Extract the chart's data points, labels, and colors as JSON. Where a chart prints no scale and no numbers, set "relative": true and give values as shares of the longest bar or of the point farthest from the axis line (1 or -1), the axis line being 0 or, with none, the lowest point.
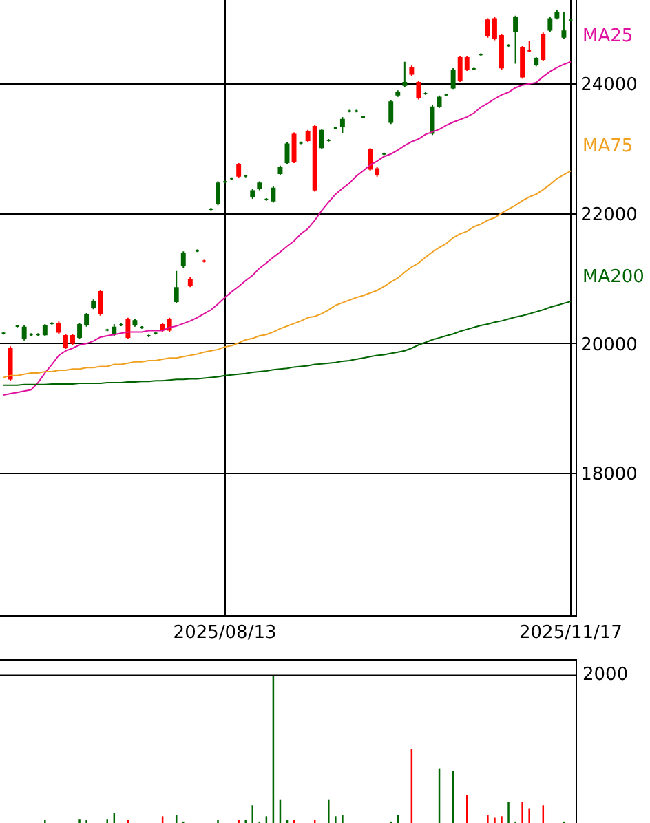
{
  "chart_data": [
    {
      "type": "candlestick",
      "grid": true,
      "categories": [
        null,
        null,
        null,
        null,
        null,
        null,
        null,
        null,
        null,
        null,
        null,
        null,
        null,
        null,
        null,
        null,
        null,
        null,
        null,
        null,
        null,
        null,
        null,
        null,
        null,
        null,
        null,
        null,
        null,
        null,
        null,
        null,
        "2025/08/13",
        null,
        null,
        null,
        null,
        null,
        null,
        null,
        null,
        null,
        null,
        null,
        null,
        null,
        null,
        null,
        null,
        null,
        null,
        null,
        null,
        null,
        null,
        null,
        null,
        null,
        null,
        null,
        null,
        null,
        null,
        null,
        null,
        null,
        null,
        null,
        null,
        null,
        null,
        null,
        null,
        null,
        null,
        null,
        null,
        null,
        null,
        null,
        null,
        null,
        "2025/11/17"
      ],
      "ohlc": [
        [
          20160,
          20180,
          20140,
          20160
        ],
        [
          19460,
          19960,
          19430,
          19930
        ],
        [
          20270,
          20290,
          20250,
          20270
        ],
        [
          20250,
          20280,
          20050,
          20080
        ],
        [
          20140,
          20160,
          20120,
          20140
        ],
        [
          20140,
          20160,
          20120,
          20140
        ],
        [
          20270,
          20300,
          20110,
          20140
        ],
        [
          20310,
          20330,
          20290,
          20310
        ],
        [
          20180,
          20340,
          20150,
          20310
        ],
        [
          19950,
          20150,
          19920,
          20120
        ],
        [
          20010,
          20150,
          19980,
          20120
        ],
        [
          20290,
          20320,
          20070,
          20100
        ],
        [
          20440,
          20470,
          20260,
          20290
        ],
        [
          20650,
          20680,
          20530,
          20560
        ],
        [
          20460,
          20830,
          20430,
          20800
        ],
        [
          20210,
          20230,
          20190,
          20210
        ],
        [
          20250,
          20300,
          20120,
          20160
        ],
        [
          20290,
          20310,
          20270,
          20290
        ],
        [
          20100,
          20400,
          20070,
          20370
        ],
        [
          20350,
          20380,
          20260,
          20290
        ],
        [
          20250,
          20270,
          20230,
          20250
        ],
        [
          20120,
          20140,
          20100,
          20120
        ],
        [
          20160,
          20180,
          20140,
          20160
        ],
        [
          20210,
          20320,
          20180,
          20290
        ],
        [
          20210,
          20400,
          20180,
          20370
        ],
        [
          20860,
          21120,
          20620,
          20650
        ],
        [
          21390,
          21420,
          21170,
          21200
        ],
        [
          20900,
          21020,
          20870,
          20990
        ],
        [
          21430,
          21450,
          21410,
          21430
        ],
        [
          21270,
          21290,
          21250,
          21270
        ],
        [
          22070,
          22090,
          22050,
          22070
        ],
        [
          22470,
          22500,
          22130,
          22160
        ],
        [
          22490,
          22510,
          22470,
          22490
        ],
        [
          22540,
          22560,
          22520,
          22540
        ],
        [
          22580,
          22780,
          22550,
          22750
        ],
        [
          22580,
          22600,
          22560,
          22580
        ],
        [
          22350,
          22380,
          22230,
          22260
        ],
        [
          22470,
          22500,
          22360,
          22390
        ],
        [
          22220,
          22240,
          22200,
          22220
        ],
        [
          22390,
          22420,
          22170,
          22200
        ],
        [
          22710,
          22740,
          22590,
          22620
        ],
        [
          23070,
          23100,
          22760,
          22790
        ],
        [
          22810,
          23250,
          22780,
          23220
        ],
        [
          23090,
          23110,
          23070,
          23090
        ],
        [
          23130,
          23290,
          23100,
          23260
        ],
        [
          22370,
          23370,
          22340,
          23340
        ],
        [
          23280,
          23310,
          22990,
          23020
        ],
        [
          23130,
          23150,
          23110,
          23130
        ],
        [
          23320,
          23340,
          23300,
          23320
        ],
        [
          23450,
          23490,
          23240,
          23340
        ],
        [
          23580,
          23600,
          23560,
          23580
        ],
        [
          23580,
          23600,
          23560,
          23580
        ],
        [
          23490,
          23510,
          23470,
          23490
        ],
        [
          22690,
          23010,
          22660,
          22980
        ],
        [
          22600,
          22720,
          22570,
          22690
        ],
        [
          22920,
          22940,
          22900,
          22920
        ],
        [
          23720,
          23750,
          23380,
          23410
        ],
        [
          23870,
          23900,
          23800,
          23830
        ],
        [
          24020,
          24340,
          23950,
          23980
        ],
        [
          24150,
          24280,
          24120,
          24250
        ],
        [
          23790,
          24050,
          23760,
          24020
        ],
        [
          23850,
          23870,
          23830,
          23850
        ],
        [
          23640,
          23670,
          23210,
          23240
        ],
        [
          23790,
          23820,
          23630,
          23660
        ],
        [
          23830,
          23850,
          23810,
          23830
        ],
        [
          24210,
          24240,
          23910,
          23940
        ],
        [
          24060,
          24430,
          24030,
          24400
        ],
        [
          24230,
          24430,
          24200,
          24400
        ],
        [
          24230,
          24250,
          24210,
          24230
        ],
        [
          24450,
          24470,
          24430,
          24450
        ],
        [
          24740,
          25010,
          24710,
          24980
        ],
        [
          24700,
          25030,
          24670,
          25000
        ],
        [
          24250,
          24770,
          24220,
          24740
        ],
        [
          24590,
          24610,
          24570,
          24590
        ],
        [
          25020,
          25050,
          24310,
          24810
        ],
        [
          24110,
          24580,
          24080,
          24550
        ],
        [
          24510,
          24660,
          24490,
          24510
        ],
        [
          24380,
          24410,
          24270,
          24300
        ],
        [
          24380,
          24790,
          24350,
          24760
        ],
        [
          25000,
          25030,
          24800,
          24830
        ],
        [
          25100,
          25130,
          24990,
          25020
        ],
        [
          24810,
          25100,
          24690,
          24720
        ],
        [
          24980,
          25000,
          24960,
          24980
        ]
      ],
      "colors": [
        "#006600",
        "#ff0000",
        "#006600",
        "#006600",
        "#006600",
        "#006600",
        "#006600",
        "#006600",
        "#ff0000",
        "#ff0000",
        "#ff0000",
        "#006600",
        "#006600",
        "#006600",
        "#ff0000",
        "#006600",
        "#006600",
        "#006600",
        "#ff0000",
        "#006600",
        "#006600",
        "#006600",
        "#006600",
        "#ff0000",
        "#ff0000",
        "#006600",
        "#006600",
        "#ff0000",
        "#006600",
        "#ff0000",
        "#006600",
        "#006600",
        "#006600",
        "#006600",
        "#ff0000",
        "#006600",
        "#006600",
        "#006600",
        "#006600",
        "#006600",
        "#006600",
        "#006600",
        "#ff0000",
        "#006600",
        "#ff0000",
        "#ff0000",
        "#006600",
        "#006600",
        "#006600",
        "#006600",
        "#006600",
        "#006600",
        "#006600",
        "#ff0000",
        "#ff0000",
        "#006600",
        "#006600",
        "#006600",
        "#006600",
        "#ff0000",
        "#ff0000",
        "#006600",
        "#006600",
        "#006600",
        "#006600",
        "#006600",
        "#ff0000",
        "#ff0000",
        "#006600",
        "#006600",
        "#ff0000",
        "#ff0000",
        "#ff0000",
        "#006600",
        "#006600",
        "#ff0000",
        "#ff0000",
        "#006600",
        "#ff0000",
        "#006600",
        "#006600",
        "#006600",
        "#006600"
      ],
      "series": [
        {
          "name": "MA25",
          "type": "line",
          "color": "#e0109f",
          "values": [
            19210,
            19230,
            19250,
            19270,
            19290,
            19400,
            19550,
            19680,
            19820,
            19890,
            19930,
            19980,
            20000,
            20040,
            20100,
            20120,
            20140,
            20160,
            20180,
            20180,
            20180,
            20200,
            20200,
            20200,
            20250,
            20270,
            20310,
            20350,
            20400,
            20460,
            20520,
            20610,
            20710,
            20800,
            20880,
            20970,
            21050,
            21160,
            21240,
            21330,
            21410,
            21500,
            21580,
            21690,
            21770,
            21900,
            22050,
            22180,
            22300,
            22390,
            22470,
            22580,
            22660,
            22750,
            22810,
            22880,
            22920,
            22980,
            23050,
            23110,
            23150,
            23220,
            23260,
            23300,
            23360,
            23410,
            23450,
            23490,
            23550,
            23640,
            23700,
            23770,
            23830,
            23870,
            23940,
            23980,
            24000,
            24020,
            24110,
            24190,
            24250,
            24300,
            24340
          ]
        },
        {
          "name": "MA75",
          "type": "line",
          "color": "#f0a020",
          "values": [
            19480,
            19510,
            19510,
            19530,
            19550,
            19550,
            19570,
            19570,
            19590,
            19590,
            19610,
            19610,
            19630,
            19630,
            19650,
            19650,
            19680,
            19680,
            19700,
            19720,
            19720,
            19740,
            19740,
            19760,
            19780,
            19780,
            19800,
            19820,
            19840,
            19870,
            19890,
            19910,
            19950,
            19970,
            20010,
            20060,
            20080,
            20120,
            20140,
            20180,
            20230,
            20270,
            20310,
            20350,
            20400,
            20420,
            20460,
            20520,
            20590,
            20630,
            20670,
            20710,
            20740,
            20780,
            20820,
            20880,
            20950,
            21010,
            21100,
            21180,
            21240,
            21330,
            21410,
            21480,
            21540,
            21630,
            21690,
            21730,
            21800,
            21840,
            21900,
            21940,
            22010,
            22070,
            22130,
            22200,
            22260,
            22300,
            22370,
            22450,
            22540,
            22600,
            22660
          ]
        },
        {
          "name": "MA200",
          "type": "line",
          "color": "#006400",
          "values": [
            19360,
            19360,
            19360,
            19370,
            19370,
            19370,
            19370,
            19380,
            19380,
            19380,
            19380,
            19390,
            19390,
            19390,
            19390,
            19400,
            19400,
            19400,
            19410,
            19410,
            19420,
            19420,
            19430,
            19430,
            19440,
            19450,
            19450,
            19460,
            19460,
            19470,
            19480,
            19490,
            19510,
            19520,
            19530,
            19540,
            19560,
            19570,
            19580,
            19600,
            19610,
            19620,
            19640,
            19650,
            19660,
            19680,
            19690,
            19700,
            19710,
            19730,
            19740,
            19760,
            19780,
            19800,
            19820,
            19830,
            19850,
            19870,
            19890,
            19930,
            19980,
            20020,
            20060,
            20090,
            20120,
            20150,
            20190,
            20220,
            20250,
            20280,
            20300,
            20330,
            20350,
            20380,
            20410,
            20430,
            20460,
            20490,
            20520,
            20560,
            20590,
            20620,
            20650
          ]
        }
      ],
      "ylim": [
        15820,
        25290
      ],
      "yticks": [
        18000,
        20000,
        22000,
        24000
      ]
    },
    {
      "type": "bar",
      "relative": true,
      "annotations": [
        "2000"
      ],
      "categories": [
        null,
        null,
        null,
        null,
        null,
        null,
        null,
        null,
        null,
        null,
        null,
        null,
        null,
        null,
        null,
        null,
        null,
        null,
        null,
        null,
        null,
        null,
        null,
        null,
        null,
        null,
        null,
        null,
        null,
        null,
        null,
        null,
        null,
        null,
        null,
        null,
        null,
        null,
        null,
        null,
        null,
        null,
        null,
        null,
        null,
        null,
        null,
        null,
        null,
        null,
        null,
        null,
        null,
        null,
        null,
        null,
        null,
        null,
        null,
        null,
        null,
        null,
        null,
        null,
        null,
        null,
        null,
        null,
        null,
        null,
        null,
        null,
        null,
        null,
        null,
        null,
        null,
        null,
        null,
        null,
        null,
        null,
        null
      ],
      "values": [
        null,
        null,
        null,
        null,
        null,
        null,
        0.02,
        null,
        null,
        null,
        null,
        0.027,
        0.02,
        null,
        null,
        0.027,
        0.065,
        null,
        0.02,
        null,
        null,
        null,
        null,
        0.045,
        null,
        0.055,
        0.01,
        null,
        null,
        null,
        null,
        0.02,
        null,
        null,
        0.02,
        0.02,
        0.12,
        0.01,
        0.045,
        1,
        0.16,
        0.02,
        0.02,
        null,
        null,
        0.02,
        null,
        0.16,
        0.045,
        0.055,
        null,
        null,
        null,
        null,
        null,
        null,
        0.01,
        0.055,
        null,
        0.5,
        null,
        null,
        null,
        0.37,
        null,
        0.35,
        null,
        0.19,
        null,
        null,
        0.055,
        0.035,
        0.045,
        0.14,
        0.01,
        0.14,
        0.1,
        null,
        0.12,
        null,
        null,
        0.01,
        null
      ],
      "colors": [
        "#006600",
        "#ff0000",
        "#006600",
        "#006600",
        "#006600",
        "#006600",
        "#006600",
        "#006600",
        "#ff0000",
        "#ff0000",
        "#ff0000",
        "#006600",
        "#006600",
        "#006600",
        "#ff0000",
        "#006600",
        "#006600",
        "#006600",
        "#ff0000",
        "#006600",
        "#006600",
        "#006600",
        "#006600",
        "#ff0000",
        "#ff0000",
        "#006600",
        "#006600",
        "#ff0000",
        "#006600",
        "#ff0000",
        "#006600",
        "#006600",
        "#006600",
        "#006600",
        "#ff0000",
        "#006600",
        "#006600",
        "#006600",
        "#006600",
        "#006600",
        "#006600",
        "#006600",
        "#ff0000",
        "#006600",
        "#ff0000",
        "#ff0000",
        "#006600",
        "#006600",
        "#006600",
        "#006600",
        "#006600",
        "#006600",
        "#006600",
        "#ff0000",
        "#ff0000",
        "#006600",
        "#006600",
        "#006600",
        "#006600",
        "#ff0000",
        "#ff0000",
        "#006600",
        "#006600",
        "#006600",
        "#006600",
        "#006600",
        "#ff0000",
        "#ff0000",
        "#006600",
        "#006600",
        "#ff0000",
        "#ff0000",
        "#ff0000",
        "#006600",
        "#006600",
        "#ff0000",
        "#ff0000",
        "#006600",
        "#ff0000",
        "#006600",
        "#006600",
        "#006600",
        "#006600"
      ],
      "orientation": "vertical"
    }
  ]
}
